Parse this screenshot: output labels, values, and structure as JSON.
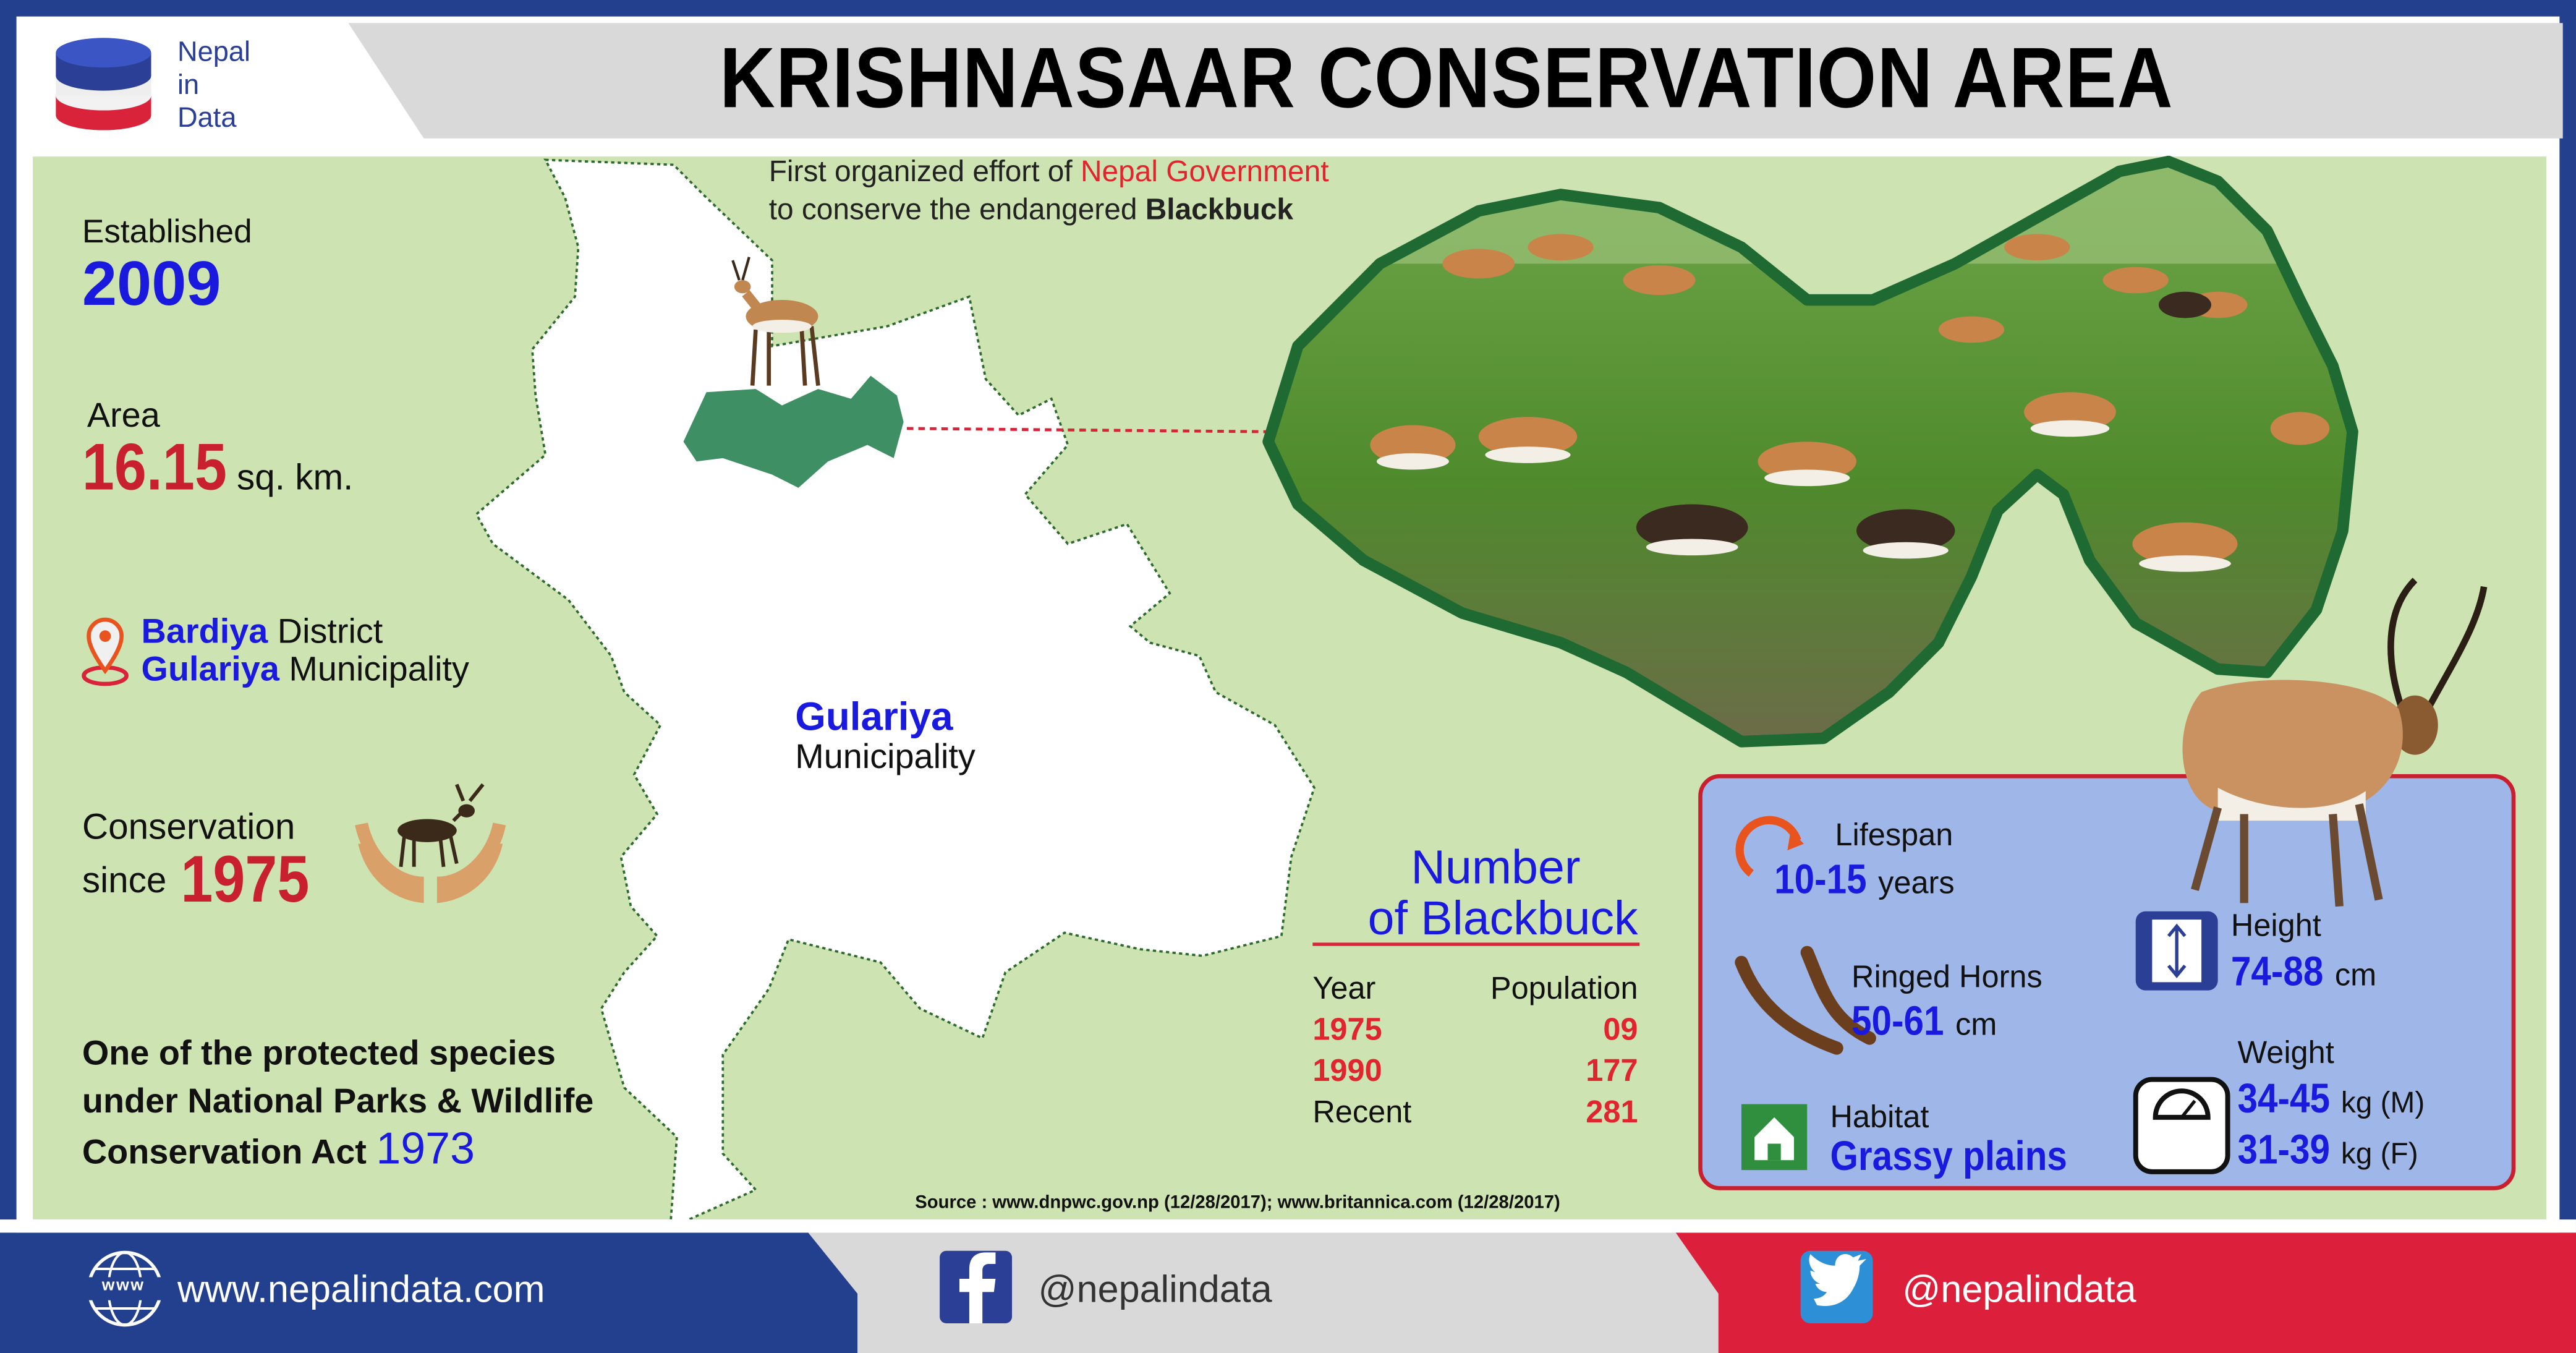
{
  "brand": {
    "line1": "Nepal",
    "line2": "in",
    "line3": "Data"
  },
  "title": "KRISHNASAAR CONSERVATION AREA",
  "intro": {
    "part1": "First organized effort of ",
    "highlight": "Nepal Government",
    "part2": "to conserve the endangered ",
    "species": "Blackbuck"
  },
  "established": {
    "label": "Established",
    "year": "2009"
  },
  "area": {
    "label": "Area",
    "value": "16.15",
    "unit": "sq. km."
  },
  "location": {
    "district_name": "Bardiya",
    "district_label": " District",
    "municipality_name": "Gulariya",
    "municipality_label": " Municipality"
  },
  "conservation": {
    "label1": "Conservation",
    "label2": "since",
    "year": "1975"
  },
  "protected": {
    "line1": "One of the protected species",
    "line2": "under National Parks & Wildlife",
    "line3": "Conservation Act ",
    "year": "1973"
  },
  "map_label": {
    "name": "Gulariya",
    "type": "Municipality"
  },
  "population": {
    "title_line1": "Number",
    "title_line2": "of Blackbuck",
    "col_year": "Year",
    "col_population": "Population",
    "rows": [
      {
        "year": "1975",
        "value": "09"
      },
      {
        "year": "1990",
        "value": "177"
      },
      {
        "year": "Recent",
        "value": "281"
      }
    ]
  },
  "facts": {
    "lifespan_label": "Lifespan",
    "lifespan_value": "10-15",
    "lifespan_unit": " years",
    "horns_label": "Ringed Horns",
    "horns_value": "50-61",
    "horns_unit": " cm",
    "habitat_label": "Habitat",
    "habitat_value": "Grassy plains",
    "height_label": "Height",
    "height_value": "74-88",
    "height_unit": " cm",
    "weight_label": "Weight",
    "weight_m_value": "34-45",
    "weight_m_unit": " kg (M)",
    "weight_f_value": "31-39",
    "weight_f_unit": " kg (F)"
  },
  "source": "Source : www.dnpwc.gov.np (12/28/2017); www.britannica.com (12/28/2017)",
  "footer": {
    "website": "www.nepalindata.com",
    "website_icon_text": "www",
    "facebook": "@nepalindata",
    "twitter": "@nepalindata"
  },
  "colors": {
    "frame_blue": "#23408e",
    "panel_green": "#cde3b1",
    "highlight_blue": "#1a1adf",
    "highlight_red": "#c8202f",
    "map_green": "#3f8f64",
    "photo_border": "#1f6a33",
    "facts_box": "#9fb7e8",
    "twitter_red": "#dc1f3a"
  }
}
